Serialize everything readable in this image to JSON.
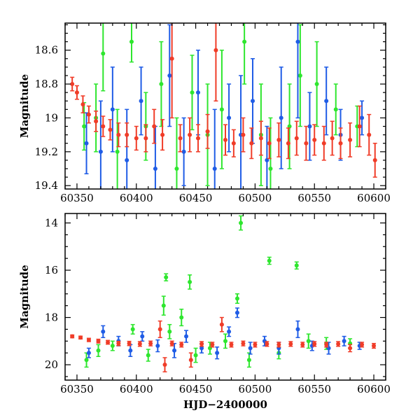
{
  "chart_data": [
    {
      "type": "scatter",
      "panel": "top",
      "xlabel": "",
      "ylabel": "Magnitude",
      "xlim": [
        60340,
        60610
      ],
      "ylim": [
        19.42,
        18.44
      ],
      "y_inverted": true,
      "x_ticks": [
        60350,
        60400,
        60450,
        60500,
        60550,
        60600
      ],
      "y_ticks": [
        18.6,
        18.8,
        19.0,
        19.2,
        19.4
      ],
      "y_tick_labels": [
        "18.6",
        "18.8",
        "19",
        "19.2",
        "19.4"
      ],
      "error_bars": true,
      "grid": false,
      "series": [
        {
          "color": "#2ee62e",
          "points": [
            {
              "x": 60356,
              "y": 19.05,
              "err": 0.14
            },
            {
              "x": 60366,
              "y": 19.0,
              "err": 0.2
            },
            {
              "x": 60372,
              "y": 18.62,
              "err": 0.22
            },
            {
              "x": 60384,
              "y": 19.2,
              "err": 0.25
            },
            {
              "x": 60396,
              "y": 18.55,
              "err": 0.12
            },
            {
              "x": 60408,
              "y": 19.05,
              "err": 0.2
            },
            {
              "x": 60421,
              "y": 18.8,
              "err": 0.25
            },
            {
              "x": 60434,
              "y": 19.3,
              "err": 0.3
            },
            {
              "x": 60447,
              "y": 18.85,
              "err": 0.22
            },
            {
              "x": 60460,
              "y": 19.1,
              "err": 0.3
            },
            {
              "x": 60472,
              "y": 18.95,
              "err": 0.35
            },
            {
              "x": 60491,
              "y": 18.55,
              "err": 0.25
            },
            {
              "x": 60505,
              "y": 19.1,
              "err": 0.3
            },
            {
              "x": 60513,
              "y": 19.3,
              "err": 0.3
            },
            {
              "x": 60529,
              "y": 19.05,
              "err": 0.25
            },
            {
              "x": 60538,
              "y": 18.75,
              "err": 0.3
            },
            {
              "x": 60552,
              "y": 18.8,
              "err": 0.25
            },
            {
              "x": 60568,
              "y": 18.95,
              "err": 0.15
            },
            {
              "x": 60586,
              "y": 19.05,
              "err": 0.12
            }
          ]
        },
        {
          "color": "#1f5ce6",
          "points": [
            {
              "x": 60358,
              "y": 19.15,
              "err": 0.18
            },
            {
              "x": 60370,
              "y": 19.2,
              "err": 0.3
            },
            {
              "x": 60380,
              "y": 18.95,
              "err": 0.25
            },
            {
              "x": 60392,
              "y": 19.25,
              "err": 0.3
            },
            {
              "x": 60404,
              "y": 18.9,
              "err": 0.2
            },
            {
              "x": 60416,
              "y": 19.3,
              "err": 0.25
            },
            {
              "x": 60428,
              "y": 18.75,
              "err": 0.3
            },
            {
              "x": 60440,
              "y": 19.2,
              "err": 0.2
            },
            {
              "x": 60452,
              "y": 18.85,
              "err": 0.25
            },
            {
              "x": 60466,
              "y": 19.3,
              "err": 0.35
            },
            {
              "x": 60478,
              "y": 19.0,
              "err": 0.2
            },
            {
              "x": 60488,
              "y": 19.1,
              "err": 0.35
            },
            {
              "x": 60498,
              "y": 18.9,
              "err": 0.25
            },
            {
              "x": 60510,
              "y": 19.25,
              "err": 0.2
            },
            {
              "x": 60522,
              "y": 19.0,
              "err": 0.3
            },
            {
              "x": 60536,
              "y": 18.55,
              "err": 0.45
            },
            {
              "x": 60546,
              "y": 19.05,
              "err": 0.2
            },
            {
              "x": 60560,
              "y": 18.9,
              "err": 0.2
            },
            {
              "x": 60572,
              "y": 19.1,
              "err": 0.15
            },
            {
              "x": 60590,
              "y": 19.0,
              "err": 0.1
            }
          ]
        },
        {
          "color": "#f03c28",
          "points": [
            {
              "x": 60346,
              "y": 18.8,
              "err": 0.04
            },
            {
              "x": 60350,
              "y": 18.85,
              "err": 0.04
            },
            {
              "x": 60355,
              "y": 18.92,
              "err": 0.05
            },
            {
              "x": 60360,
              "y": 18.98,
              "err": 0.05
            },
            {
              "x": 60366,
              "y": 19.02,
              "err": 0.06
            },
            {
              "x": 60372,
              "y": 19.05,
              "err": 0.06
            },
            {
              "x": 60378,
              "y": 19.07,
              "err": 0.06
            },
            {
              "x": 60385,
              "y": 19.1,
              "err": 0.07
            },
            {
              "x": 60392,
              "y": 19.1,
              "err": 0.07
            },
            {
              "x": 60400,
              "y": 19.12,
              "err": 0.07
            },
            {
              "x": 60408,
              "y": 19.12,
              "err": 0.08
            },
            {
              "x": 60415,
              "y": 19.05,
              "err": 0.1
            },
            {
              "x": 60422,
              "y": 19.1,
              "err": 0.09
            },
            {
              "x": 60430,
              "y": 18.65,
              "err": 0.35
            },
            {
              "x": 60437,
              "y": 19.12,
              "err": 0.08
            },
            {
              "x": 60445,
              "y": 19.1,
              "err": 0.1
            },
            {
              "x": 60452,
              "y": 19.12,
              "err": 0.08
            },
            {
              "x": 60460,
              "y": 19.08,
              "err": 0.1
            },
            {
              "x": 60467,
              "y": 18.6,
              "err": 0.3
            },
            {
              "x": 60475,
              "y": 19.13,
              "err": 0.09
            },
            {
              "x": 60482,
              "y": 19.15,
              "err": 0.08
            },
            {
              "x": 60490,
              "y": 19.1,
              "err": 0.1
            },
            {
              "x": 60497,
              "y": 19.15,
              "err": 0.09
            },
            {
              "x": 60505,
              "y": 19.12,
              "err": 0.1
            },
            {
              "x": 60512,
              "y": 19.15,
              "err": 0.09
            },
            {
              "x": 60520,
              "y": 19.13,
              "err": 0.1
            },
            {
              "x": 60528,
              "y": 19.15,
              "err": 0.09
            },
            {
              "x": 60535,
              "y": 19.12,
              "err": 0.1
            },
            {
              "x": 60543,
              "y": 19.15,
              "err": 0.1
            },
            {
              "x": 60550,
              "y": 19.13,
              "err": 0.09
            },
            {
              "x": 60558,
              "y": 19.15,
              "err": 0.1
            },
            {
              "x": 60565,
              "y": 19.12,
              "err": 0.1
            },
            {
              "x": 60572,
              "y": 19.15,
              "err": 0.09
            },
            {
              "x": 60580,
              "y": 19.13,
              "err": 0.1
            },
            {
              "x": 60588,
              "y": 19.05,
              "err": 0.12
            },
            {
              "x": 60596,
              "y": 19.1,
              "err": 0.12
            },
            {
              "x": 60601,
              "y": 19.25,
              "err": 0.1
            }
          ]
        }
      ]
    },
    {
      "type": "scatter",
      "panel": "bottom",
      "xlabel": "HJD−2400000",
      "ylabel": "Magnitude",
      "xlim": [
        60340,
        60610
      ],
      "ylim": [
        20.65,
        13.6
      ],
      "y_inverted": true,
      "x_ticks": [
        60350,
        60400,
        60450,
        60500,
        60550,
        60600
      ],
      "y_ticks": [
        14,
        16,
        18,
        20
      ],
      "y_tick_labels": [
        "14",
        "16",
        "18",
        "20"
      ],
      "error_bars": true,
      "grid": false,
      "series": [
        {
          "color": "#2ee62e",
          "points": [
            {
              "x": 60358,
              "y": 19.8,
              "err": 0.3
            },
            {
              "x": 60368,
              "y": 19.4,
              "err": 0.25
            },
            {
              "x": 60380,
              "y": 19.2,
              "err": 0.2
            },
            {
              "x": 60397,
              "y": 18.5,
              "err": 0.2
            },
            {
              "x": 60410,
              "y": 19.6,
              "err": 0.25
            },
            {
              "x": 60423,
              "y": 17.5,
              "err": 0.4
            },
            {
              "x": 60425,
              "y": 16.3,
              "err": 0.15
            },
            {
              "x": 60428,
              "y": 18.6,
              "err": 0.3
            },
            {
              "x": 60438,
              "y": 18.0,
              "err": 0.35
            },
            {
              "x": 60445,
              "y": 16.5,
              "err": 0.3
            },
            {
              "x": 60450,
              "y": 19.6,
              "err": 0.3
            },
            {
              "x": 60462,
              "y": 19.3,
              "err": 0.25
            },
            {
              "x": 60475,
              "y": 19.0,
              "err": 0.3
            },
            {
              "x": 60485,
              "y": 17.2,
              "err": 0.2
            },
            {
              "x": 60488,
              "y": 14.0,
              "err": 0.3
            },
            {
              "x": 60495,
              "y": 19.8,
              "err": 0.3
            },
            {
              "x": 60512,
              "y": 15.6,
              "err": 0.15
            },
            {
              "x": 60520,
              "y": 19.5,
              "err": 0.25
            },
            {
              "x": 60535,
              "y": 15.8,
              "err": 0.15
            },
            {
              "x": 60545,
              "y": 19.0,
              "err": 0.3
            },
            {
              "x": 60560,
              "y": 19.1,
              "err": 0.25
            },
            {
              "x": 60580,
              "y": 19.1,
              "err": 0.2
            }
          ]
        },
        {
          "color": "#1f5ce6",
          "points": [
            {
              "x": 60360,
              "y": 19.5,
              "err": 0.2
            },
            {
              "x": 60372,
              "y": 18.6,
              "err": 0.25
            },
            {
              "x": 60385,
              "y": 19.0,
              "err": 0.2
            },
            {
              "x": 60395,
              "y": 19.4,
              "err": 0.25
            },
            {
              "x": 60405,
              "y": 18.8,
              "err": 0.2
            },
            {
              "x": 60418,
              "y": 19.2,
              "err": 0.25
            },
            {
              "x": 60432,
              "y": 19.4,
              "err": 0.3
            },
            {
              "x": 60442,
              "y": 18.8,
              "err": 0.25
            },
            {
              "x": 60455,
              "y": 19.3,
              "err": 0.2
            },
            {
              "x": 60468,
              "y": 19.5,
              "err": 0.25
            },
            {
              "x": 60478,
              "y": 18.6,
              "err": 0.2
            },
            {
              "x": 60485,
              "y": 17.8,
              "err": 0.2
            },
            {
              "x": 60496,
              "y": 19.3,
              "err": 0.25
            },
            {
              "x": 60508,
              "y": 19.0,
              "err": 0.2
            },
            {
              "x": 60520,
              "y": 19.3,
              "err": 0.25
            },
            {
              "x": 60536,
              "y": 18.5,
              "err": 0.35
            },
            {
              "x": 60548,
              "y": 19.2,
              "err": 0.2
            },
            {
              "x": 60562,
              "y": 19.3,
              "err": 0.25
            },
            {
              "x": 60575,
              "y": 19.0,
              "err": 0.2
            },
            {
              "x": 60588,
              "y": 19.2,
              "err": 0.15
            }
          ]
        },
        {
          "color": "#f03c28",
          "points": [
            {
              "x": 60346,
              "y": 18.8,
              "err": 0.06
            },
            {
              "x": 60353,
              "y": 18.85,
              "err": 0.06
            },
            {
              "x": 60360,
              "y": 18.95,
              "err": 0.07
            },
            {
              "x": 60368,
              "y": 19.0,
              "err": 0.08
            },
            {
              "x": 60376,
              "y": 19.05,
              "err": 0.08
            },
            {
              "x": 60385,
              "y": 19.1,
              "err": 0.09
            },
            {
              "x": 60394,
              "y": 19.1,
              "err": 0.09
            },
            {
              "x": 60403,
              "y": 19.12,
              "err": 0.1
            },
            {
              "x": 60412,
              "y": 19.1,
              "err": 0.1
            },
            {
              "x": 60420,
              "y": 18.5,
              "err": 0.35
            },
            {
              "x": 60424,
              "y": 20.0,
              "err": 0.3
            },
            {
              "x": 60430,
              "y": 19.1,
              "err": 0.1
            },
            {
              "x": 60438,
              "y": 19.15,
              "err": 0.1
            },
            {
              "x": 60446,
              "y": 19.8,
              "err": 0.3
            },
            {
              "x": 60455,
              "y": 19.12,
              "err": 0.1
            },
            {
              "x": 60464,
              "y": 19.15,
              "err": 0.1
            },
            {
              "x": 60472,
              "y": 18.3,
              "err": 0.3
            },
            {
              "x": 60480,
              "y": 19.15,
              "err": 0.1
            },
            {
              "x": 60490,
              "y": 19.1,
              "err": 0.1
            },
            {
              "x": 60500,
              "y": 19.15,
              "err": 0.1
            },
            {
              "x": 60510,
              "y": 19.12,
              "err": 0.1
            },
            {
              "x": 60520,
              "y": 19.15,
              "err": 0.1
            },
            {
              "x": 60530,
              "y": 19.12,
              "err": 0.1
            },
            {
              "x": 60540,
              "y": 19.15,
              "err": 0.1
            },
            {
              "x": 60550,
              "y": 19.12,
              "err": 0.1
            },
            {
              "x": 60560,
              "y": 19.15,
              "err": 0.1
            },
            {
              "x": 60570,
              "y": 19.12,
              "err": 0.1
            },
            {
              "x": 60580,
              "y": 19.3,
              "err": 0.15
            },
            {
              "x": 60590,
              "y": 19.15,
              "err": 0.1
            },
            {
              "x": 60600,
              "y": 19.2,
              "err": 0.1
            }
          ]
        }
      ]
    }
  ]
}
